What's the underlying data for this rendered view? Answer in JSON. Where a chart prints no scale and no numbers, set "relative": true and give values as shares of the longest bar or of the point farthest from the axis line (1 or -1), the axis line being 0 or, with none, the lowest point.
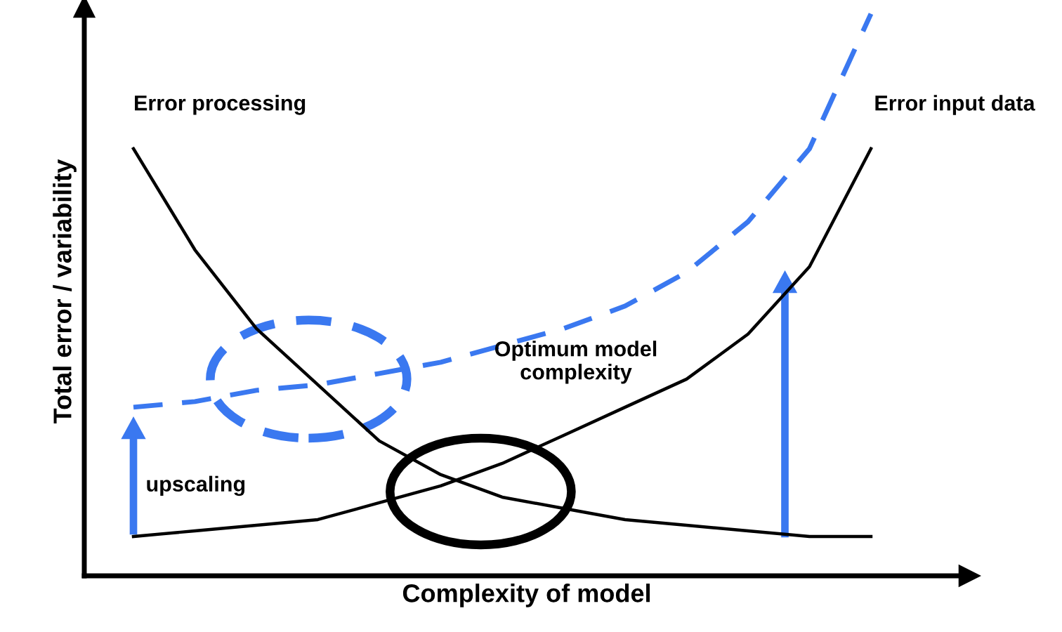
{
  "chart_data": {
    "type": "line",
    "relative": true,
    "xlabel": "Complexity of model",
    "ylabel": "Total error / variability",
    "categories": [
      null,
      null,
      null,
      null,
      null,
      null,
      null,
      null,
      null,
      null,
      null,
      null,
      null
    ],
    "series": [
      {
        "name": "Error processing",
        "color": "#000000",
        "line_style": "solid",
        "values": [
          0.76,
          0.58,
          0.44,
          0.34,
          0.24,
          0.18,
          0.14,
          0.12,
          0.1,
          0.09,
          0.08,
          0.07,
          0.07
        ]
      },
      {
        "name": "Error input data",
        "color": "#000000",
        "line_style": "solid",
        "values": [
          0.07,
          0.08,
          0.09,
          0.1,
          0.13,
          0.16,
          0.2,
          0.25,
          0.3,
          0.35,
          0.43,
          0.55,
          0.76
        ]
      },
      {
        "color": "#3a78f0",
        "line_style": "dashed",
        "values": [
          0.3,
          0.31,
          0.33,
          0.34,
          0.36,
          0.38,
          0.41,
          0.44,
          0.48,
          0.54,
          0.63,
          0.76,
          1.0
        ]
      }
    ],
    "annotations": [
      "Optimum model\ncomplexity",
      "upscaling"
    ],
    "legend": false,
    "marker": "none"
  }
}
